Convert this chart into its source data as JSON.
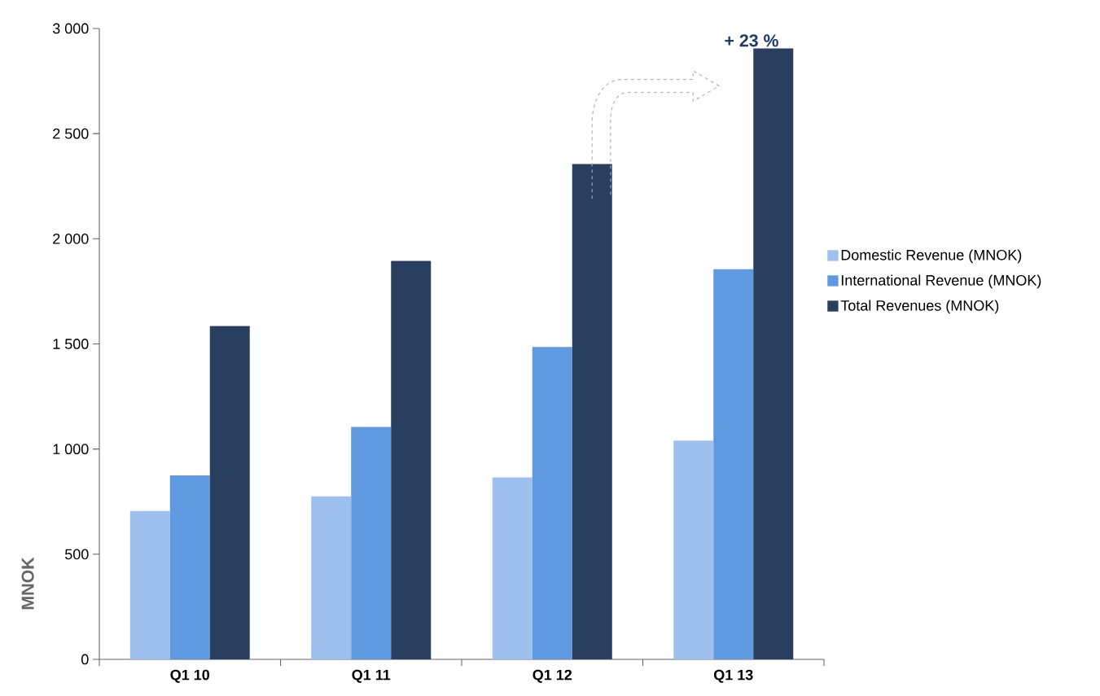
{
  "chart_data": {
    "type": "bar",
    "ylabel": "MNOK",
    "categories": [
      "Q1 10",
      "Q1 11",
      "Q1 12",
      "Q1 13"
    ],
    "series": [
      {
        "name": "Domestic Revenue (MNOK)",
        "color": "#9dc0ee",
        "values": [
          705,
          775,
          865,
          1040
        ]
      },
      {
        "name": "International Revenue (MNOK)",
        "color": "#5f9ae0",
        "values": [
          875,
          1105,
          1485,
          1855
        ]
      },
      {
        "name": "Total Revenues (MNOK)",
        "color": "#2a3f5f",
        "values": [
          1585,
          1895,
          2355,
          2905
        ]
      }
    ],
    "ylim": [
      0,
      3000
    ],
    "yticks": [
      0,
      500,
      {
        "value": 1000,
        "label": "1 000"
      },
      {
        "value": 1500,
        "label": "1 500"
      },
      {
        "value": 2000,
        "label": "2 000"
      },
      {
        "value": 2500,
        "label": "2 500"
      },
      {
        "value": 3000,
        "label": "3 000"
      }
    ],
    "annotations": [
      "+ 23 %"
    ],
    "legend": "right",
    "grid": false
  }
}
